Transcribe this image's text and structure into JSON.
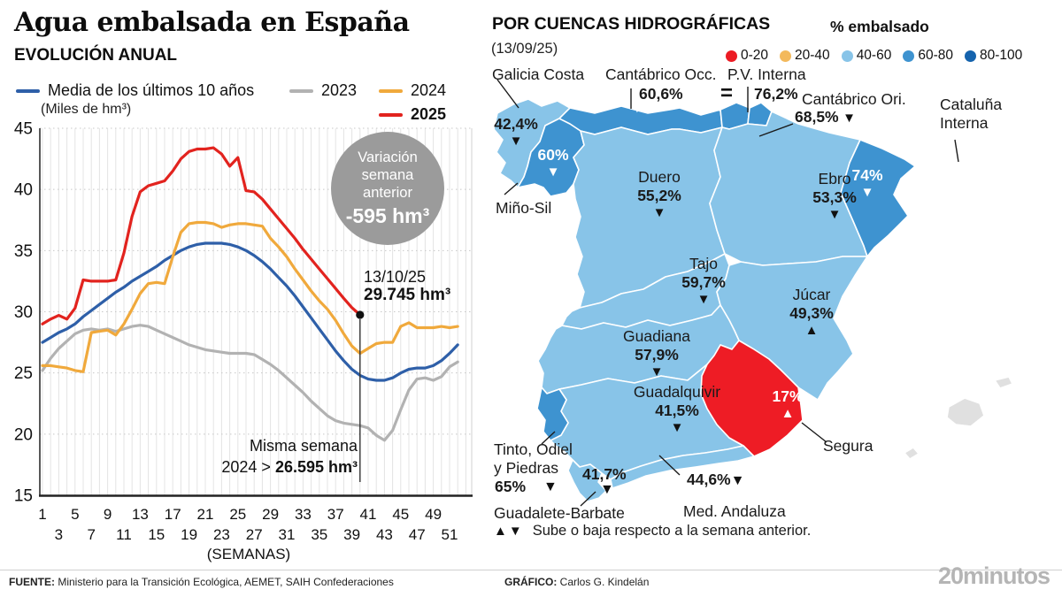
{
  "header": {
    "title": "Agua embalsada en España",
    "subtitle": "EVOLUCIÓN ANUAL"
  },
  "chart_data": {
    "type": "line",
    "title": "EVOLUCIÓN ANUAL",
    "unit_label": "(Miles de hm³)",
    "xlabel": "(SEMANAS)",
    "ylim": [
      15,
      45
    ],
    "yticks": [
      15,
      20,
      25,
      30,
      35,
      40,
      45
    ],
    "xticks": [
      1,
      3,
      5,
      7,
      9,
      11,
      13,
      15,
      17,
      19,
      21,
      23,
      25,
      27,
      29,
      31,
      33,
      35,
      37,
      39,
      41,
      43,
      45,
      47,
      49,
      51
    ],
    "grid": true,
    "legend_position": "top",
    "series": [
      {
        "name": "Media de los últimos 10 años",
        "color": "#2e5fa8",
        "bold": false,
        "values": [
          27.5,
          27.9,
          28.3,
          28.6,
          29.0,
          29.6,
          30.1,
          30.6,
          31.1,
          31.6,
          32.0,
          32.5,
          32.9,
          33.3,
          33.7,
          34.2,
          34.6,
          35.0,
          35.3,
          35.5,
          35.6,
          35.6,
          35.6,
          35.5,
          35.3,
          35.0,
          34.6,
          34.1,
          33.5,
          32.8,
          32.1,
          31.3,
          30.4,
          29.5,
          28.6,
          27.7,
          26.8,
          26.0,
          25.3,
          24.8,
          24.5,
          24.4,
          24.4,
          24.6,
          25.0,
          25.3,
          25.4,
          25.4,
          25.6,
          26.0,
          26.6,
          27.3
        ]
      },
      {
        "name": "2023",
        "color": "#b2b2b2",
        "bold": false,
        "values": [
          25.2,
          26.2,
          27.0,
          27.6,
          28.2,
          28.5,
          28.6,
          28.5,
          28.6,
          28.4,
          28.6,
          28.8,
          28.9,
          28.8,
          28.5,
          28.2,
          27.9,
          27.6,
          27.3,
          27.1,
          26.9,
          26.8,
          26.7,
          26.6,
          26.6,
          26.6,
          26.5,
          26.1,
          25.7,
          25.2,
          24.6,
          24.0,
          23.4,
          22.7,
          22.1,
          21.5,
          21.1,
          20.9,
          20.8,
          20.7,
          20.5,
          19.9,
          19.5,
          20.3,
          22.0,
          23.6,
          24.5,
          24.6,
          24.4,
          24.7,
          25.5,
          25.9
        ]
      },
      {
        "name": "2024",
        "color": "#f0a93c",
        "bold": false,
        "values": [
          25.6,
          25.6,
          25.5,
          25.4,
          25.2,
          25.1,
          28.3,
          28.4,
          28.5,
          28.1,
          29.0,
          30.2,
          31.5,
          32.3,
          32.4,
          32.3,
          34.5,
          36.5,
          37.2,
          37.3,
          37.3,
          37.2,
          36.9,
          37.1,
          37.2,
          37.2,
          37.1,
          37.0,
          36.0,
          35.3,
          34.5,
          33.5,
          32.6,
          31.7,
          30.9,
          30.2,
          29.3,
          28.2,
          27.2,
          26.595,
          27.0,
          27.4,
          27.5,
          27.5,
          28.8,
          29.1,
          28.7,
          28.7,
          28.7,
          28.8,
          28.7,
          28.8
        ]
      },
      {
        "name": "2025",
        "color": "#e2231e",
        "bold": true,
        "values": [
          29.0,
          29.4,
          29.7,
          29.4,
          30.3,
          32.6,
          32.5,
          32.5,
          32.5,
          32.6,
          34.8,
          37.8,
          39.8,
          40.3,
          40.5,
          40.7,
          41.5,
          42.5,
          43.1,
          43.3,
          43.3,
          43.4,
          42.9,
          41.9,
          42.6,
          39.9,
          39.8,
          39.2,
          38.4,
          37.6,
          36.8,
          36.0,
          35.1,
          34.3,
          33.5,
          32.7,
          31.9,
          31.1,
          30.34,
          29.745
        ]
      }
    ],
    "annotations": {
      "variation_badge": {
        "line1": "Variación",
        "line2": "semana",
        "line3": "anterior",
        "value": "-595 hm³"
      },
      "end_point": {
        "date": "13/10/25",
        "value": "29.745 hm³",
        "week": 40,
        "y": 29.745
      },
      "same_week": {
        "line1": "Misma semana",
        "line2_prefix": "2024 > ",
        "line2_value": "26.595 hm³",
        "week": 40
      }
    }
  },
  "map": {
    "title": "POR CUENCAS HIDROGRÁFICAS",
    "date": "(13/09/25)",
    "legend_title": "% embalsado",
    "legend": [
      {
        "label": "0-20",
        "color": "#ec1c24"
      },
      {
        "label": "20-40",
        "color": "#f3b95c"
      },
      {
        "label": "40-60",
        "color": "#88c4e8"
      },
      {
        "label": "60-80",
        "color": "#3e93d0"
      },
      {
        "label": "80-100",
        "color": "#1563ad"
      }
    ],
    "palette": {
      "0-20": "#ee1c25",
      "20-40": "#f3b95c",
      "40-60": "#88c4e8",
      "60-80": "#3e93d0",
      "80-100": "#1563ad",
      "nodata": "#e0e0e0"
    },
    "note_icons": "▲▼",
    "note": "Sube o baja respecto a la semana anterior.",
    "regions": [
      {
        "id": "galicia-costa",
        "name": "Galicia Costa",
        "value": "42,4%",
        "marker": "▼",
        "trend": "down",
        "category": "40-60"
      },
      {
        "id": "mino-sil",
        "name": "Miño-Sil",
        "value": "60%",
        "marker": "▼",
        "trend": "down",
        "category": "60-80"
      },
      {
        "id": "cantabrico-occ",
        "name": "Cantábrico Occ.",
        "value": "60,6%",
        "marker": "▼",
        "trend": "down",
        "category": "60-80"
      },
      {
        "id": "pv-interna",
        "name": "P.V. Interna",
        "value": "76,2%",
        "marker": "=",
        "trend": "equal",
        "category": "60-80"
      },
      {
        "id": "cantabrico-ori",
        "name": "Cantábrico Ori.",
        "value": "68,5%",
        "marker": "▼",
        "trend": "down",
        "category": "60-80"
      },
      {
        "id": "cataluna-interna",
        "name": "Cataluña Interna",
        "value": "74%",
        "marker": "▼",
        "trend": "down",
        "category": "60-80"
      },
      {
        "id": "duero",
        "name": "Duero",
        "value": "55,2%",
        "marker": "▼",
        "trend": "down",
        "category": "40-60"
      },
      {
        "id": "ebro",
        "name": "Ebro",
        "value": "53,3%",
        "marker": "▼",
        "trend": "down",
        "category": "40-60"
      },
      {
        "id": "tajo",
        "name": "Tajo",
        "value": "59,7%",
        "marker": "▼",
        "trend": "down",
        "category": "40-60"
      },
      {
        "id": "jucar",
        "name": "Júcar",
        "value": "49,3%",
        "marker": "▲",
        "trend": "up",
        "category": "40-60"
      },
      {
        "id": "guadiana",
        "name": "Guadiana",
        "value": "57,9%",
        "marker": "▼",
        "trend": "down",
        "category": "40-60"
      },
      {
        "id": "guadalquivir",
        "name": "Guadalquivir",
        "value": "41,5%",
        "marker": "▼",
        "trend": "down",
        "category": "40-60"
      },
      {
        "id": "segura",
        "name": "Segura",
        "value": "17%",
        "marker": "▲",
        "trend": "up",
        "category": "0-20"
      },
      {
        "id": "tinto",
        "name": "Tinto, Odiel y Piedras",
        "value": "65%",
        "marker": "▼",
        "trend": "down",
        "category": "60-80"
      },
      {
        "id": "guadalete",
        "name": "Guadalete-Barbate",
        "value": "41,7%",
        "marker": "▼",
        "trend": "down",
        "category": "40-60"
      },
      {
        "id": "med-andaluza",
        "name": "Med. Andaluza",
        "value": "44,6%",
        "marker": "▼",
        "trend": "down",
        "category": "40-60"
      }
    ]
  },
  "footer": {
    "source_label": "FUENTE:",
    "source": " Ministerio para la Transición Ecológica, AEMET, SAIH Confederaciones",
    "credit_label": "GRÁFICO:",
    "credit": " Carlos G. Kindelán",
    "brand": "20minutos"
  }
}
